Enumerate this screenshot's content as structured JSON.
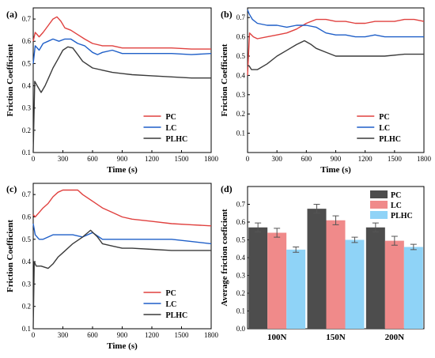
{
  "colors": {
    "PC": "#e0413f",
    "LC": "#1f5fc8",
    "PLHC": "#3a3a3a",
    "bar_PC": "#4d4d4d",
    "bar_LC": "#f08a8a",
    "bar_PLHC": "#8fd3f7"
  },
  "chart_data": [
    {
      "panel": "(a)",
      "type": "line",
      "xlabel": "Time (s)",
      "ylabel": "Friction Coefficient",
      "xlim": [
        0,
        1800
      ],
      "ylim": [
        0.1,
        0.75
      ],
      "xticks": [
        "0",
        "300",
        "600",
        "900",
        "1200",
        "1500",
        "1800"
      ],
      "yticks": [
        "0.1",
        "0.2",
        "0.3",
        "0.4",
        "0.5",
        "0.6",
        "0.7"
      ],
      "legend_position": "bottom-right",
      "series": [
        {
          "name": "PC",
          "x": [
            0,
            20,
            60,
            100,
            150,
            200,
            240,
            280,
            320,
            380,
            450,
            520,
            600,
            700,
            800,
            900,
            1000,
            1200,
            1400,
            1600,
            1800
          ],
          "y": [
            0.6,
            0.64,
            0.62,
            0.64,
            0.67,
            0.7,
            0.71,
            0.69,
            0.66,
            0.65,
            0.63,
            0.61,
            0.59,
            0.58,
            0.58,
            0.57,
            0.57,
            0.57,
            0.57,
            0.565,
            0.565
          ]
        },
        {
          "name": "LC",
          "x": [
            0,
            20,
            60,
            100,
            150,
            200,
            260,
            320,
            380,
            450,
            520,
            600,
            650,
            700,
            800,
            900,
            1000,
            1200,
            1400,
            1600,
            1800
          ],
          "y": [
            0.5,
            0.58,
            0.56,
            0.59,
            0.6,
            0.61,
            0.6,
            0.61,
            0.61,
            0.59,
            0.58,
            0.55,
            0.54,
            0.55,
            0.56,
            0.545,
            0.545,
            0.545,
            0.545,
            0.54,
            0.545
          ]
        },
        {
          "name": "PLHC",
          "x": [
            0,
            15,
            40,
            80,
            120,
            160,
            200,
            250,
            300,
            350,
            400,
            450,
            500,
            600,
            700,
            800,
            900,
            1000,
            1200,
            1400,
            1600,
            1800
          ],
          "y": [
            0.1,
            0.42,
            0.4,
            0.37,
            0.4,
            0.44,
            0.48,
            0.52,
            0.56,
            0.575,
            0.57,
            0.54,
            0.51,
            0.48,
            0.47,
            0.46,
            0.455,
            0.45,
            0.445,
            0.44,
            0.435,
            0.435
          ]
        }
      ]
    },
    {
      "panel": "(b)",
      "type": "line",
      "xlabel": "Time (s)",
      "ylabel": "Friction Coefficient",
      "xlim": [
        0,
        1800
      ],
      "ylim": [
        0.0,
        0.75
      ],
      "xticks": [
        "0",
        "300",
        "600",
        "900",
        "1200",
        "1500",
        "1800"
      ],
      "yticks": [
        "0.1",
        "0.2",
        "0.3",
        "0.4",
        "0.5",
        "0.6",
        "0.7"
      ],
      "legend_position": "bottom-right",
      "series": [
        {
          "name": "PC",
          "x": [
            0,
            20,
            60,
            100,
            200,
            300,
            400,
            500,
            600,
            700,
            800,
            900,
            1000,
            1100,
            1200,
            1300,
            1400,
            1500,
            1600,
            1700,
            1800
          ],
          "y": [
            0.4,
            0.62,
            0.6,
            0.59,
            0.6,
            0.61,
            0.62,
            0.64,
            0.67,
            0.69,
            0.69,
            0.68,
            0.68,
            0.67,
            0.67,
            0.68,
            0.68,
            0.68,
            0.69,
            0.69,
            0.68
          ]
        },
        {
          "name": "LC",
          "x": [
            0,
            15,
            50,
            100,
            200,
            300,
            400,
            500,
            600,
            700,
            800,
            900,
            1000,
            1100,
            1200,
            1300,
            1400,
            1500,
            1600,
            1700,
            1800
          ],
          "y": [
            0.74,
            0.72,
            0.69,
            0.67,
            0.66,
            0.66,
            0.65,
            0.66,
            0.66,
            0.65,
            0.62,
            0.61,
            0.61,
            0.6,
            0.6,
            0.61,
            0.6,
            0.6,
            0.6,
            0.6,
            0.6
          ]
        },
        {
          "name": "PLHC",
          "x": [
            0,
            15,
            40,
            100,
            200,
            300,
            400,
            500,
            580,
            650,
            700,
            800,
            900,
            1000,
            1200,
            1400,
            1600,
            1800
          ],
          "y": [
            0.45,
            0.45,
            0.43,
            0.43,
            0.46,
            0.5,
            0.53,
            0.56,
            0.58,
            0.56,
            0.54,
            0.52,
            0.5,
            0.5,
            0.5,
            0.5,
            0.51,
            0.51
          ]
        }
      ]
    },
    {
      "panel": "(c)",
      "type": "line",
      "xlabel": "Time (s)",
      "ylabel": "Friction Coefficient",
      "xlim": [
        0,
        1800
      ],
      "ylim": [
        0.1,
        0.75
      ],
      "xticks": [
        "0",
        "300",
        "600",
        "900",
        "1200",
        "1500",
        "1800"
      ],
      "yticks": [
        "0.1",
        "0.2",
        "0.3",
        "0.4",
        "0.5",
        "0.6",
        "0.7"
      ],
      "legend_position": "bottom-right",
      "series": [
        {
          "name": "PC",
          "x": [
            0,
            20,
            60,
            100,
            150,
            200,
            250,
            300,
            350,
            400,
            450,
            500,
            600,
            700,
            800,
            900,
            1000,
            1200,
            1400,
            1600,
            1800
          ],
          "y": [
            0.61,
            0.6,
            0.62,
            0.64,
            0.66,
            0.69,
            0.71,
            0.72,
            0.72,
            0.72,
            0.72,
            0.7,
            0.67,
            0.64,
            0.62,
            0.6,
            0.59,
            0.58,
            0.57,
            0.565,
            0.56
          ]
        },
        {
          "name": "LC",
          "x": [
            0,
            20,
            60,
            100,
            200,
            300,
            400,
            500,
            600,
            700,
            800,
            900,
            1000,
            1200,
            1400,
            1600,
            1800
          ],
          "y": [
            0.57,
            0.52,
            0.5,
            0.5,
            0.52,
            0.52,
            0.52,
            0.51,
            0.53,
            0.5,
            0.5,
            0.5,
            0.5,
            0.5,
            0.5,
            0.49,
            0.48
          ]
        },
        {
          "name": "PLHC",
          "x": [
            0,
            10,
            30,
            80,
            150,
            200,
            250,
            300,
            400,
            500,
            580,
            650,
            700,
            800,
            900,
            1000,
            1200,
            1400,
            1600,
            1800
          ],
          "y": [
            0.1,
            0.4,
            0.38,
            0.38,
            0.37,
            0.39,
            0.42,
            0.44,
            0.48,
            0.51,
            0.54,
            0.51,
            0.48,
            0.47,
            0.46,
            0.46,
            0.455,
            0.45,
            0.45,
            0.45
          ]
        }
      ]
    },
    {
      "panel": "(d)",
      "type": "bar",
      "xlabel": "",
      "ylabel": "Average friction coeficient",
      "ylim": [
        0.0,
        0.8
      ],
      "yticks": [
        "0.0",
        "0.1",
        "0.2",
        "0.3",
        "0.4",
        "0.5",
        "0.6",
        "0.7"
      ],
      "categories": [
        "100N",
        "150N",
        "200N"
      ],
      "legend_position": "top-right",
      "series": [
        {
          "name": "PC",
          "values": [
            0.57,
            0.675,
            0.57
          ],
          "errors": [
            0.025,
            0.025,
            0.025
          ]
        },
        {
          "name": "LC",
          "values": [
            0.54,
            0.61,
            0.495
          ],
          "errors": [
            0.025,
            0.025,
            0.025
          ]
        },
        {
          "name": "PLHC",
          "values": [
            0.445,
            0.5,
            0.46
          ],
          "errors": [
            0.015,
            0.015,
            0.015
          ]
        }
      ]
    }
  ]
}
